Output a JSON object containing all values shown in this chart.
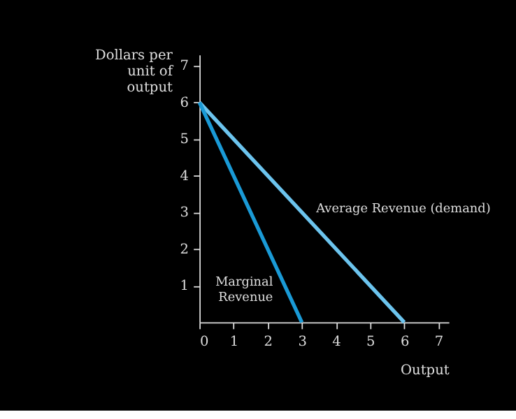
{
  "chart_data": {
    "type": "line",
    "xlabel": "Output",
    "ylabel": "Dollars per unit of output",
    "xlim": [
      0,
      7.3
    ],
    "ylim": [
      0,
      7.3
    ],
    "xticks": [
      0,
      1,
      2,
      3,
      4,
      5,
      6,
      7
    ],
    "yticks": [
      1,
      2,
      3,
      4,
      5,
      6,
      7
    ],
    "series": [
      {
        "color": "#6cc4ee",
        "x": [
          0,
          6
        ],
        "values": [
          6,
          0
        ]
      },
      {
        "color": "#1a9ad6",
        "x": [
          0,
          3
        ],
        "values": [
          6,
          0
        ]
      }
    ],
    "annotations": [
      {
        "text": "Average Revenue (demand)",
        "x": 3.2,
        "y": 2.8
      },
      {
        "text": "Marginal Revenue",
        "x": 2.3,
        "y": 1.4
      }
    ],
    "grid": false,
    "legend": false,
    "marker": "none",
    "line_style": "solid"
  }
}
